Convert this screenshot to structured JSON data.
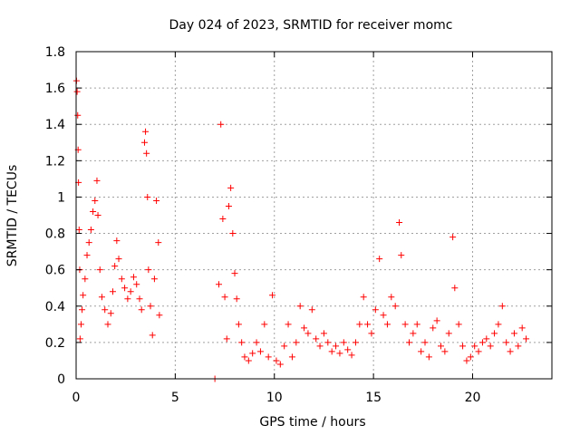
{
  "chart_data": {
    "type": "scatter",
    "title": "Day 024 of 2023, SRMTID for receiver momc",
    "xlabel": "GPS time / hours",
    "ylabel": "SRMTID / TECUs",
    "xlim": [
      0,
      24
    ],
    "ylim": [
      0,
      1.8
    ],
    "grid": true,
    "legend": "none",
    "xticks": [
      0,
      5,
      10,
      15,
      20
    ],
    "xtick_labels": [
      "0",
      "5",
      "10",
      "15",
      "20"
    ],
    "yticks": [
      0,
      0.2,
      0.4,
      0.6,
      0.8,
      1,
      1.2,
      1.4,
      1.6,
      1.8
    ],
    "ytick_labels": [
      "0",
      "0.2",
      "0.4",
      "0.6",
      "0.8",
      "1",
      "1.2",
      "1.4",
      "1.6",
      "1.8"
    ],
    "marker": "+",
    "color": "#ff0000",
    "series": [
      {
        "name": "SRMTID",
        "points": [
          [
            0.02,
            1.64
          ],
          [
            0.05,
            1.58
          ],
          [
            0.08,
            1.45
          ],
          [
            0.1,
            1.26
          ],
          [
            0.12,
            1.08
          ],
          [
            0.15,
            0.82
          ],
          [
            0.18,
            0.6
          ],
          [
            0.2,
            0.22
          ],
          [
            0.25,
            0.3
          ],
          [
            0.3,
            0.38
          ],
          [
            0.35,
            0.46
          ],
          [
            0.45,
            0.55
          ],
          [
            0.55,
            0.68
          ],
          [
            0.65,
            0.75
          ],
          [
            0.75,
            0.82
          ],
          [
            0.85,
            0.92
          ],
          [
            0.95,
            0.98
          ],
          [
            1.05,
            1.09
          ],
          [
            1.1,
            0.9
          ],
          [
            1.2,
            0.6
          ],
          [
            1.3,
            0.45
          ],
          [
            1.45,
            0.38
          ],
          [
            1.6,
            0.3
          ],
          [
            1.75,
            0.36
          ],
          [
            1.85,
            0.48
          ],
          [
            1.95,
            0.62
          ],
          [
            2.05,
            0.76
          ],
          [
            2.15,
            0.66
          ],
          [
            2.3,
            0.55
          ],
          [
            2.45,
            0.5
          ],
          [
            2.6,
            0.44
          ],
          [
            2.75,
            0.48
          ],
          [
            2.9,
            0.56
          ],
          [
            3.05,
            0.52
          ],
          [
            3.2,
            0.44
          ],
          [
            3.3,
            0.38
          ],
          [
            3.45,
            1.3
          ],
          [
            3.5,
            1.36
          ],
          [
            3.55,
            1.24
          ],
          [
            3.6,
            1.0
          ],
          [
            3.65,
            0.6
          ],
          [
            3.75,
            0.4
          ],
          [
            3.85,
            0.24
          ],
          [
            3.95,
            0.55
          ],
          [
            4.05,
            0.98
          ],
          [
            4.15,
            0.75
          ],
          [
            4.2,
            0.35
          ],
          [
            7.0,
            0.0
          ],
          [
            7.2,
            0.52
          ],
          [
            7.3,
            1.4
          ],
          [
            7.4,
            0.88
          ],
          [
            7.5,
            0.45
          ],
          [
            7.6,
            0.22
          ],
          [
            7.7,
            0.95
          ],
          [
            7.8,
            1.05
          ],
          [
            7.9,
            0.8
          ],
          [
            8.0,
            0.58
          ],
          [
            8.1,
            0.44
          ],
          [
            8.2,
            0.3
          ],
          [
            8.35,
            0.2
          ],
          [
            8.5,
            0.12
          ],
          [
            8.7,
            0.1
          ],
          [
            8.9,
            0.14
          ],
          [
            9.1,
            0.2
          ],
          [
            9.3,
            0.15
          ],
          [
            9.5,
            0.3
          ],
          [
            9.7,
            0.12
          ],
          [
            9.9,
            0.46
          ],
          [
            10.1,
            0.1
          ],
          [
            10.3,
            0.08
          ],
          [
            10.5,
            0.18
          ],
          [
            10.7,
            0.3
          ],
          [
            10.9,
            0.12
          ],
          [
            11.1,
            0.2
          ],
          [
            11.3,
            0.4
          ],
          [
            11.5,
            0.28
          ],
          [
            11.7,
            0.25
          ],
          [
            11.9,
            0.38
          ],
          [
            12.1,
            0.22
          ],
          [
            12.3,
            0.18
          ],
          [
            12.5,
            0.25
          ],
          [
            12.7,
            0.2
          ],
          [
            12.9,
            0.15
          ],
          [
            13.1,
            0.18
          ],
          [
            13.3,
            0.14
          ],
          [
            13.5,
            0.2
          ],
          [
            13.7,
            0.16
          ],
          [
            13.9,
            0.13
          ],
          [
            14.1,
            0.2
          ],
          [
            14.3,
            0.3
          ],
          [
            14.5,
            0.45
          ],
          [
            14.7,
            0.3
          ],
          [
            14.9,
            0.25
          ],
          [
            15.1,
            0.38
          ],
          [
            15.3,
            0.66
          ],
          [
            15.5,
            0.35
          ],
          [
            15.7,
            0.3
          ],
          [
            15.9,
            0.45
          ],
          [
            16.1,
            0.4
          ],
          [
            16.3,
            0.86
          ],
          [
            16.4,
            0.68
          ],
          [
            16.6,
            0.3
          ],
          [
            16.8,
            0.2
          ],
          [
            17.0,
            0.25
          ],
          [
            17.2,
            0.3
          ],
          [
            17.4,
            0.15
          ],
          [
            17.6,
            0.2
          ],
          [
            17.8,
            0.12
          ],
          [
            18.0,
            0.28
          ],
          [
            18.2,
            0.32
          ],
          [
            18.4,
            0.18
          ],
          [
            18.6,
            0.15
          ],
          [
            18.8,
            0.25
          ],
          [
            19.0,
            0.78
          ],
          [
            19.1,
            0.5
          ],
          [
            19.3,
            0.3
          ],
          [
            19.5,
            0.18
          ],
          [
            19.7,
            0.1
          ],
          [
            19.9,
            0.12
          ],
          [
            20.1,
            0.18
          ],
          [
            20.3,
            0.15
          ],
          [
            20.5,
            0.2
          ],
          [
            20.7,
            0.22
          ],
          [
            20.9,
            0.18
          ],
          [
            21.1,
            0.25
          ],
          [
            21.3,
            0.3
          ],
          [
            21.5,
            0.4
          ],
          [
            21.7,
            0.2
          ],
          [
            21.9,
            0.15
          ],
          [
            22.1,
            0.25
          ],
          [
            22.3,
            0.18
          ],
          [
            22.5,
            0.28
          ],
          [
            22.7,
            0.22
          ]
        ]
      }
    ]
  }
}
